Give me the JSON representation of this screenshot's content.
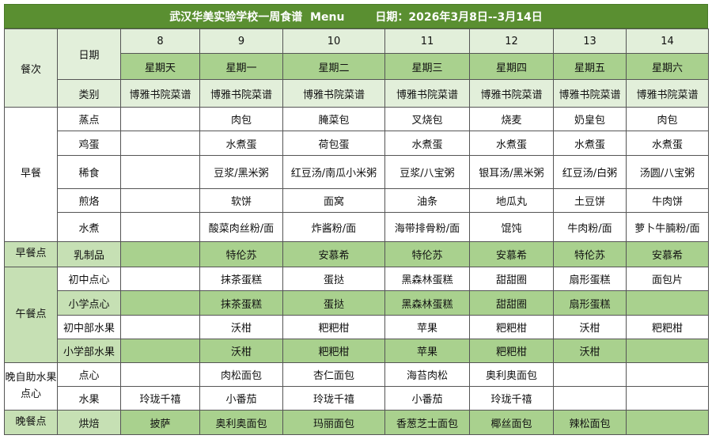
{
  "title": "武汉华美实验学校一周食谱  Menu        日期：2026年3月8日--3月14日",
  "colors": {
    "title_bg": "#5a8f31",
    "header_light": "#e2efda",
    "header_weekday": "#a9d18e",
    "label_green": "#c6e0b4",
    "row_green": "#a9d18e"
  },
  "header": {
    "meal_label": "餐次",
    "date_label": "日期",
    "category_label": "类别",
    "dates": [
      "8",
      "9",
      "10",
      "11",
      "12",
      "13",
      "14"
    ],
    "weekdays": [
      "星期天",
      "星期一",
      "星期二",
      "星期三",
      "星期四",
      "星期五",
      "星期六"
    ],
    "categories": [
      "博雅书院菜谱",
      "博雅书院菜谱",
      "博雅书院菜谱",
      "博雅书院菜谱",
      "博雅书院菜谱",
      "博雅书院菜谱",
      "博雅书院菜谱"
    ]
  },
  "groups": [
    {
      "name": "早餐",
      "style": "w",
      "rows": [
        {
          "label": "蒸点",
          "style": "w",
          "cells": [
            "",
            "肉包",
            "腌菜包",
            "叉烧包",
            "烧麦",
            "奶皇包",
            "肉包"
          ]
        },
        {
          "label": "鸡蛋",
          "style": "w",
          "cells": [
            "",
            "水煮蛋",
            "荷包蛋",
            "水煮蛋",
            "水煮蛋",
            "水煮蛋",
            "水煮蛋"
          ]
        },
        {
          "label": "稀食",
          "style": "w",
          "cells": [
            "",
            "豆浆/黑米粥",
            "红豆汤/南瓜小米粥",
            "豆浆/八宝粥",
            "银耳汤/黑米粥",
            "红豆汤/白粥",
            "汤圆/八宝粥"
          ]
        },
        {
          "label": "煎烙",
          "style": "w",
          "cells": [
            "",
            "软饼",
            "面窝",
            "油条",
            "地瓜丸",
            "土豆饼",
            "牛肉饼"
          ]
        },
        {
          "label": "水煮",
          "style": "w",
          "cells": [
            "",
            "酸菜肉丝粉/面",
            "炸酱粉/面",
            "海带排骨粉/面",
            "馄饨",
            "牛肉粉/面",
            "萝卜牛腩粉/面"
          ]
        }
      ]
    },
    {
      "name": "早餐点",
      "style": "lg",
      "rows": [
        {
          "label": "乳制品",
          "style": "g",
          "cells": [
            "",
            "特伦苏",
            "安慕希",
            "特伦苏",
            "安慕希",
            "特伦苏",
            "安慕希"
          ]
        }
      ]
    },
    {
      "name": "午餐点",
      "style": "lg",
      "rows": [
        {
          "label": "初中点心",
          "style": "w",
          "cells": [
            "",
            "抹茶蛋糕",
            "蛋挞",
            "黑森林蛋糕",
            "甜甜圈",
            "扇形蛋糕",
            "面包片"
          ]
        },
        {
          "label": "小学点心",
          "style": "g",
          "cells": [
            "",
            "抹茶蛋糕",
            "蛋挞",
            "黑森林蛋糕",
            "甜甜圈",
            "扇形蛋糕",
            ""
          ]
        },
        {
          "label": "初中部水果",
          "style": "w",
          "cells": [
            "",
            "沃柑",
            "粑粑柑",
            "苹果",
            "粑粑柑",
            "沃柑",
            "粑粑柑"
          ]
        },
        {
          "label": "小学部水果",
          "style": "g",
          "cells": [
            "",
            "沃柑",
            "粑粑柑",
            "苹果",
            "粑粑柑",
            "沃柑",
            ""
          ]
        }
      ]
    },
    {
      "name": "晚自助水果点心",
      "style": "w",
      "rows": [
        {
          "label": "点心",
          "style": "w",
          "cells": [
            "",
            "肉松面包",
            "杏仁面包",
            "海苔肉松",
            "奥利奥面包",
            "",
            ""
          ]
        },
        {
          "label": "水果",
          "style": "w",
          "cells": [
            "玲珑千禧",
            "小番茄",
            "玲珑千禧",
            "小番茄",
            "玲珑千禧",
            "",
            ""
          ]
        }
      ]
    },
    {
      "name": "晚餐点",
      "style": "lg",
      "rows": [
        {
          "label": "烘焙",
          "style": "g",
          "cells": [
            "披萨",
            "奥利奥面包",
            "玛丽面包",
            "香葱芝士面包",
            "椰丝面包",
            "辣松面包",
            ""
          ]
        }
      ]
    }
  ]
}
